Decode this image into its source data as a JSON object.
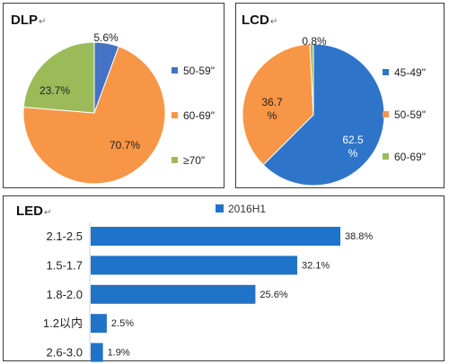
{
  "chart_data": [
    {
      "type": "pie",
      "title": "DLP",
      "mark": "↵",
      "series": [
        {
          "name": "50-59\"",
          "label": "5.6%",
          "value": 5.6,
          "color": "#4472C4"
        },
        {
          "name": "60-69\"",
          "label": "70.7%",
          "value": 70.7,
          "color": "#F79646"
        },
        {
          "name": "≥70\"",
          "label": "23.7%",
          "value": 23.7,
          "color": "#9BBB59"
        }
      ],
      "legend": "right"
    },
    {
      "type": "pie",
      "title": "LCD",
      "mark": "↵",
      "series": [
        {
          "name": "45-49\"",
          "label": "62.5 %",
          "value": 62.5,
          "color": "#2E75C9"
        },
        {
          "name": "50-59\"",
          "label": "36.7 %",
          "value": 36.7,
          "color": "#F79646"
        },
        {
          "name": "60-69\"",
          "label": "0.8%",
          "value": 0.8,
          "color": "#9BBB59"
        }
      ],
      "legend": "right"
    },
    {
      "type": "bar",
      "orientation": "horizontal",
      "title": "LED",
      "mark": "↵",
      "legend_entry": "2016H1",
      "color": "#1F73C8",
      "categories": [
        "2.1-2.5",
        "1.5-1.7",
        "1.8-2.0",
        "1.2以内",
        "2.6-3.0"
      ],
      "values": [
        38.8,
        32.1,
        25.6,
        2.5,
        1.9
      ],
      "value_labels": [
        "38.8%",
        "32.1%",
        "25.6%",
        "2.5%",
        "1.9%"
      ],
      "xlim": [
        0,
        38.8
      ],
      "grid": false
    }
  ]
}
